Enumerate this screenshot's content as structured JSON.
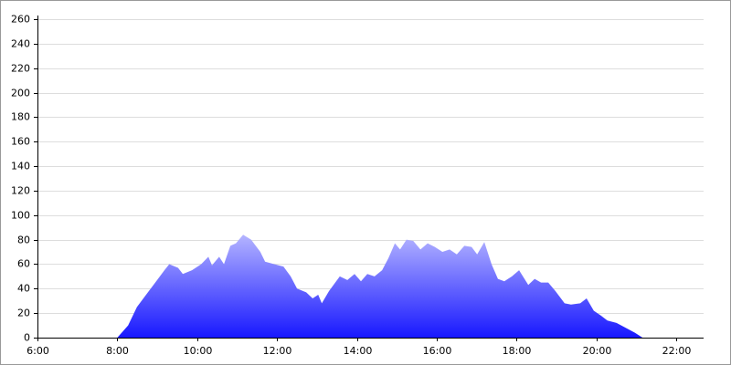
{
  "chart_data": {
    "type": "area",
    "x": [
      8.0,
      8.27,
      8.49,
      8.72,
      8.95,
      9.18,
      9.3,
      9.52,
      9.64,
      9.87,
      10.1,
      10.28,
      10.37,
      10.55,
      10.67,
      10.83,
      10.97,
      11.15,
      11.35,
      11.58,
      11.7,
      11.93,
      12.16,
      12.34,
      12.5,
      12.73,
      12.89,
      13.03,
      13.12,
      13.3,
      13.57,
      13.76,
      13.94,
      14.1,
      14.26,
      14.44,
      14.63,
      14.79,
      14.95,
      15.08,
      15.24,
      15.41,
      15.59,
      15.77,
      15.95,
      16.14,
      16.32,
      16.5,
      16.69,
      16.87,
      17.01,
      17.19,
      17.37,
      17.53,
      17.69,
      17.88,
      18.06,
      18.29,
      18.45,
      18.61,
      18.79,
      18.97,
      19.2,
      19.36,
      19.59,
      19.75,
      19.93,
      20.11,
      20.27,
      20.5,
      20.73,
      20.96,
      21.15
    ],
    "values": [
      0,
      10,
      25,
      35,
      45,
      55,
      60,
      57,
      52,
      55,
      60,
      66,
      59,
      66,
      60,
      75,
      77,
      84,
      80,
      70,
      62,
      60,
      58,
      50,
      40,
      37,
      32,
      35,
      28,
      38,
      50,
      47,
      52,
      46,
      52,
      50,
      55,
      65,
      77,
      72,
      80,
      79,
      72,
      77,
      74,
      70,
      72,
      68,
      75,
      74,
      68,
      78,
      60,
      48,
      46,
      50,
      55,
      43,
      48,
      45,
      45,
      38,
      28,
      27,
      28,
      32,
      22,
      18,
      14,
      12,
      8,
      4,
      0
    ],
    "fill_gradient": [
      "#b4b4ff",
      "#1818ff"
    ],
    "xlim": [
      6,
      22.68
    ],
    "xticks": [
      {
        "value": 6,
        "label": "6:00"
      },
      {
        "value": 8,
        "label": "8:00"
      },
      {
        "value": 10,
        "label": "10:00"
      },
      {
        "value": 12,
        "label": "12:00"
      },
      {
        "value": 14,
        "label": "14:00"
      },
      {
        "value": 16,
        "label": "16:00"
      },
      {
        "value": 18,
        "label": "18:00"
      },
      {
        "value": 20,
        "label": "20:00"
      },
      {
        "value": 22,
        "label": "22:00"
      }
    ],
    "ylim": [
      0,
      260
    ],
    "yticks": [
      0,
      20,
      40,
      60,
      80,
      100,
      120,
      140,
      160,
      180,
      200,
      220,
      240,
      260
    ],
    "grid": true
  }
}
